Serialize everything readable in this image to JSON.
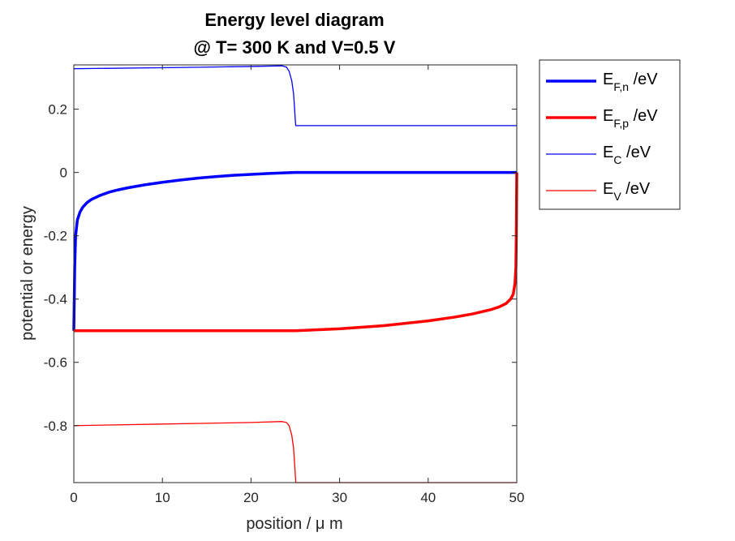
{
  "chart_data": {
    "type": "line",
    "title": [
      "Energy level diagram",
      "@ T= 300 K and V=0.5 V"
    ],
    "xlabel": "position / μ m",
    "ylabel": "potential or energy",
    "xlim": [
      0,
      50
    ],
    "ylim": [
      -0.98,
      0.34
    ],
    "xticks": [
      0,
      10,
      20,
      30,
      40,
      50
    ],
    "xtick_labels": [
      "0",
      "10",
      "20",
      "30",
      "40",
      "50"
    ],
    "yticks": [
      0.2,
      0,
      -0.2,
      -0.4,
      -0.6,
      -0.8
    ],
    "ytick_labels": [
      "0.2",
      "0",
      "-0.2",
      "-0.4",
      "-0.6",
      "-0.8"
    ],
    "grid": false,
    "legend_placement": "outside-top-right",
    "series": [
      {
        "name": "E_{F,n} /eV",
        "label_main": "E",
        "label_sub": "F,n",
        "label_tail": " /eV",
        "color": "#0000ff",
        "weight": "thick",
        "x": [
          0,
          0.1,
          0.2,
          0.4,
          0.7,
          1,
          1.5,
          2,
          3,
          4,
          5,
          6,
          8,
          10,
          12,
          14,
          16,
          18,
          20,
          22,
          24,
          25,
          30,
          40,
          50
        ],
        "y": [
          -0.5,
          -0.3,
          -0.2,
          -0.15,
          -0.125,
          -0.11,
          -0.095,
          -0.085,
          -0.072,
          -0.062,
          -0.055,
          -0.049,
          -0.039,
          -0.031,
          -0.024,
          -0.018,
          -0.013,
          -0.009,
          -0.006,
          -0.003,
          -0.001,
          0,
          0,
          0,
          0
        ]
      },
      {
        "name": "E_{F,p} /eV",
        "label_main": "E",
        "label_sub": "F,p",
        "label_tail": " /eV",
        "color": "#ff0000",
        "weight": "thick",
        "x": [
          0,
          25,
          30,
          35,
          40,
          43,
          45,
          47,
          48,
          48.8,
          49.3,
          49.6,
          49.8,
          49.9,
          49.95,
          50
        ],
        "y": [
          -0.5,
          -0.5,
          -0.494,
          -0.484,
          -0.469,
          -0.457,
          -0.447,
          -0.434,
          -0.425,
          -0.414,
          -0.4,
          -0.385,
          -0.35,
          -0.3,
          -0.2,
          0
        ]
      },
      {
        "name": "E_C /eV",
        "label_main": "E",
        "label_sub": "C",
        "label_tail": " /eV",
        "color": "#0000ff",
        "weight": "thin",
        "x": [
          0,
          10,
          20,
          23.5,
          24,
          24.3,
          24.6,
          24.8,
          24.9,
          25,
          25.05,
          30,
          40,
          50
        ],
        "y": [
          0.328,
          0.331,
          0.335,
          0.337,
          0.333,
          0.32,
          0.29,
          0.25,
          0.21,
          0.165,
          0.148,
          0.148,
          0.148,
          0.148
        ]
      },
      {
        "name": "E_V /eV",
        "label_main": "E",
        "label_sub": "V",
        "label_tail": " /eV",
        "color": "#ff0000",
        "weight": "thin",
        "x": [
          0,
          10,
          20,
          23.5,
          24,
          24.3,
          24.6,
          24.8,
          24.9,
          25,
          25.05,
          30,
          40,
          50
        ],
        "y": [
          -0.8,
          -0.795,
          -0.79,
          -0.787,
          -0.79,
          -0.8,
          -0.83,
          -0.87,
          -0.91,
          -0.955,
          -0.98,
          -0.98,
          -0.98,
          -0.98
        ]
      }
    ]
  }
}
